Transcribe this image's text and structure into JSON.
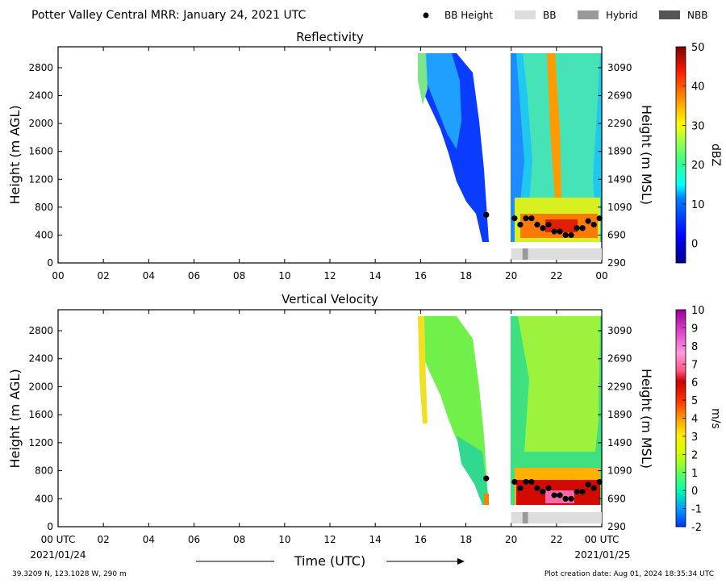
{
  "header": {
    "title": "Potter Valley Central MRR:  January 24, 2021 UTC",
    "legend": [
      {
        "label": "BB Height",
        "kind": "dot",
        "color": "#000000"
      },
      {
        "label": "BB",
        "kind": "box",
        "color": "#dddddd"
      },
      {
        "label": "Hybrid",
        "kind": "box",
        "color": "#999999"
      },
      {
        "label": "NBB",
        "kind": "box",
        "color": "#555555"
      }
    ]
  },
  "footer": {
    "location": "39.3209 N, 123.1028 W, 290 m",
    "creation": "Plot creation date: Aug 01, 2024 18:35:34 UTC",
    "xlabel": "Time (UTC)",
    "start_date": "2021/01/24",
    "end_date": "2021/01/25"
  },
  "chart_data": [
    {
      "type": "heatmap",
      "title": "Reflectivity",
      "xlabel": "",
      "ylabel": "Height (m AGL)",
      "y2label": "Height (m MSL)",
      "x_ticks": [
        "00",
        "02",
        "04",
        "06",
        "08",
        "10",
        "12",
        "14",
        "16",
        "18",
        "20",
        "22",
        "00"
      ],
      "xlim_hours": [
        0,
        24
      ],
      "y_ticks": [
        0,
        400,
        800,
        1200,
        1600,
        2000,
        2400,
        2800
      ],
      "y2_ticks": [
        290,
        690,
        1090,
        1490,
        1890,
        2290,
        2690,
        3090
      ],
      "ylim": [
        0,
        3100
      ],
      "colorbar": {
        "label": "dBZ",
        "min": -5,
        "max": 50,
        "ticks": [
          0,
          10,
          20,
          30,
          40,
          50
        ]
      },
      "bb_height": [
        {
          "hour": 18.9,
          "height": 690
        },
        {
          "hour": 20.15,
          "height": 640
        },
        {
          "hour": 20.4,
          "height": 550
        },
        {
          "hour": 20.65,
          "height": 640
        },
        {
          "hour": 20.9,
          "height": 640
        },
        {
          "hour": 21.15,
          "height": 550
        },
        {
          "hour": 21.4,
          "height": 500
        },
        {
          "hour": 21.65,
          "height": 550
        },
        {
          "hour": 21.9,
          "height": 450
        },
        {
          "hour": 22.15,
          "height": 450
        },
        {
          "hour": 22.4,
          "height": 400
        },
        {
          "hour": 22.65,
          "height": 400
        },
        {
          "hour": 22.9,
          "height": 500
        },
        {
          "hour": 23.15,
          "height": 500
        },
        {
          "hour": 23.4,
          "height": 600
        },
        {
          "hour": 23.65,
          "height": 550
        },
        {
          "hour": 23.9,
          "height": 640
        }
      ],
      "bb_type_bar": [
        {
          "start": 20.0,
          "end": 20.5,
          "type": "BB"
        },
        {
          "start": 20.5,
          "end": 20.75,
          "type": "Hybrid"
        },
        {
          "start": 20.75,
          "end": 24.0,
          "type": "BB"
        }
      ]
    },
    {
      "type": "heatmap",
      "title": "Vertical Velocity",
      "xlabel": "Time (UTC)",
      "ylabel": "Height (m AGL)",
      "y2label": "Height (m MSL)",
      "x_ticks": [
        "00 UTC",
        "02",
        "04",
        "06",
        "08",
        "10",
        "12",
        "14",
        "16",
        "18",
        "20",
        "22",
        "00 UTC"
      ],
      "xlim_hours": [
        0,
        24
      ],
      "y_ticks": [
        0,
        400,
        800,
        1200,
        1600,
        2000,
        2400,
        2800
      ],
      "y2_ticks": [
        290,
        690,
        1090,
        1490,
        1890,
        2290,
        2690,
        3090
      ],
      "ylim": [
        0,
        3100
      ],
      "colorbar": {
        "label": "m/s",
        "min": -2,
        "max": 10,
        "ticks": [
          -2,
          -1,
          0,
          1,
          2,
          3,
          4,
          5,
          6,
          7,
          8,
          9,
          10
        ]
      },
      "bb_height": [
        {
          "hour": 18.9,
          "height": 690
        },
        {
          "hour": 20.15,
          "height": 640
        },
        {
          "hour": 20.4,
          "height": 550
        },
        {
          "hour": 20.65,
          "height": 640
        },
        {
          "hour": 20.9,
          "height": 640
        },
        {
          "hour": 21.15,
          "height": 550
        },
        {
          "hour": 21.4,
          "height": 500
        },
        {
          "hour": 21.65,
          "height": 550
        },
        {
          "hour": 21.9,
          "height": 450
        },
        {
          "hour": 22.15,
          "height": 450
        },
        {
          "hour": 22.4,
          "height": 400
        },
        {
          "hour": 22.65,
          "height": 400
        },
        {
          "hour": 22.9,
          "height": 500
        },
        {
          "hour": 23.15,
          "height": 500
        },
        {
          "hour": 23.4,
          "height": 600
        },
        {
          "hour": 23.65,
          "height": 550
        },
        {
          "hour": 23.9,
          "height": 640
        }
      ],
      "bb_type_bar": [
        {
          "start": 20.0,
          "end": 20.5,
          "type": "BB"
        },
        {
          "start": 20.5,
          "end": 20.75,
          "type": "Hybrid"
        },
        {
          "start": 20.75,
          "end": 24.0,
          "type": "BB"
        }
      ]
    }
  ]
}
